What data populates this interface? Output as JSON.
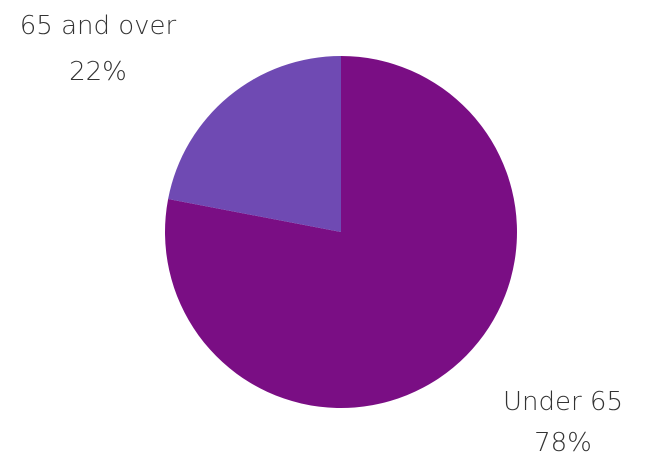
{
  "chart_data": {
    "type": "pie",
    "title": "",
    "start_angle": "top",
    "direction": "clockwise",
    "legend": "none",
    "slices": [
      {
        "name": "Under 65",
        "value": 78,
        "value_label": "78%",
        "color": "#7a0e84"
      },
      {
        "name": "65 and over",
        "value": 22,
        "value_label": "22%",
        "color": "#6f4ab3"
      }
    ]
  }
}
